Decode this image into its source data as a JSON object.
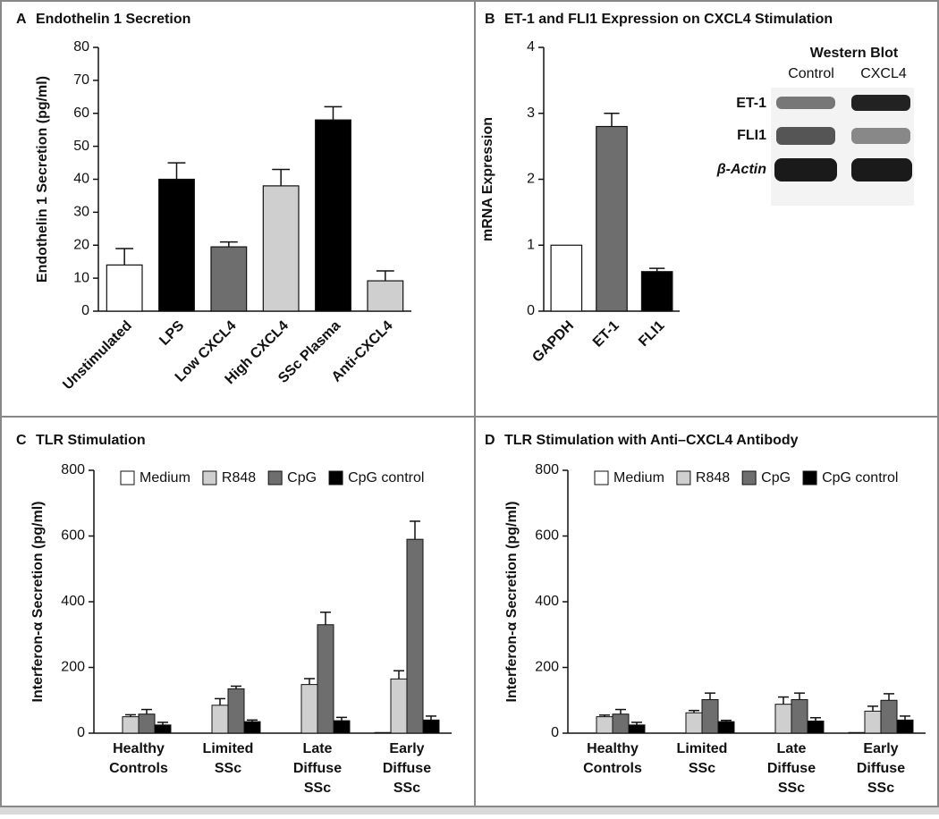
{
  "chart_data": [
    {
      "type": "bar",
      "letter": "A",
      "title": "Endothelin 1 Secretion",
      "ylabel": "Endothelin 1 Secretion (pg/ml)",
      "categories": [
        "Unstimulated",
        "LPS",
        "Low CXCL4",
        "High CXCL4",
        "SSc Plasma",
        "Anti-CXCL4"
      ],
      "values": [
        14,
        40,
        19.5,
        38,
        58,
        9.2
      ],
      "errors": [
        5,
        5,
        1.5,
        5,
        4,
        3
      ],
      "colors": [
        "#ffffff",
        "#000000",
        "#6e6e6e",
        "#cfcfcf",
        "#000000",
        "#cfcfcf"
      ],
      "ylim": [
        0,
        80
      ],
      "yticks": [
        0,
        10,
        20,
        30,
        40,
        50,
        60,
        70,
        80
      ]
    },
    {
      "type": "bar",
      "letter": "B",
      "title": "ET-1 and FLI1 Expression on CXCL4 Stimulation",
      "ylabel": "mRNA Expression",
      "categories": [
        "GAPDH",
        "ET-1",
        "FLI1"
      ],
      "values": [
        1,
        2.8,
        0.6
      ],
      "errors": [
        null,
        0.2,
        0.05
      ],
      "colors": [
        "#ffffff",
        "#6e6e6e",
        "#000000"
      ],
      "ylim": [
        0,
        4
      ],
      "yticks": [
        0,
        1,
        2,
        3,
        4
      ],
      "blot": {
        "title": "Western Blot",
        "columns": [
          "Control",
          "CXCL4"
        ],
        "rows": [
          "ET-1",
          "FLI1",
          "β-Actin"
        ]
      }
    },
    {
      "type": "grouped-bar",
      "letter": "C",
      "title": "TLR Stimulation",
      "ylabel": "Interferon-α Secretion (pg/ml)",
      "categories": [
        [
          "Healthy",
          "Controls"
        ],
        [
          "Limited",
          "SSc"
        ],
        [
          "Late",
          "Diffuse",
          "SSc"
        ],
        [
          "Early",
          "Diffuse",
          "SSc"
        ]
      ],
      "series": [
        {
          "name": "Medium",
          "color": "#ffffff",
          "values": [
            0,
            0,
            0,
            2
          ]
        },
        {
          "name": "R848",
          "color": "#cfcfcf",
          "values": [
            50,
            85,
            148,
            165
          ],
          "errors": [
            6,
            20,
            18,
            25
          ]
        },
        {
          "name": "CpG",
          "color": "#6e6e6e",
          "values": [
            58,
            135,
            330,
            590
          ],
          "errors": [
            14,
            8,
            38,
            55
          ]
        },
        {
          "name": "CpG control",
          "color": "#000000",
          "values": [
            25,
            35,
            38,
            40
          ],
          "errors": [
            8,
            5,
            10,
            12
          ]
        }
      ],
      "ylim": [
        0,
        800
      ],
      "yticks": [
        0,
        200,
        400,
        600,
        800
      ]
    },
    {
      "type": "grouped-bar",
      "letter": "D",
      "title": "TLR Stimulation with Anti–CXCL4 Antibody",
      "ylabel": "Interferon-α Secretion (pg/ml)",
      "categories": [
        [
          "Healthy",
          "Controls"
        ],
        [
          "Limited",
          "SSc"
        ],
        [
          "Late",
          "Diffuse",
          "SSc"
        ],
        [
          "Early",
          "Diffuse",
          "SSc"
        ]
      ],
      "series": [
        {
          "name": "Medium",
          "color": "#ffffff",
          "values": [
            0,
            0,
            0,
            2
          ]
        },
        {
          "name": "R848",
          "color": "#cfcfcf",
          "values": [
            50,
            62,
            88,
            67
          ],
          "errors": [
            5,
            7,
            22,
            15
          ]
        },
        {
          "name": "CpG",
          "color": "#6e6e6e",
          "values": [
            58,
            102,
            102,
            100
          ],
          "errors": [
            14,
            20,
            20,
            20
          ]
        },
        {
          "name": "CpG control",
          "color": "#000000",
          "values": [
            25,
            35,
            37,
            40
          ],
          "errors": [
            8,
            4,
            10,
            12
          ]
        }
      ],
      "ylim": [
        0,
        800
      ],
      "yticks": [
        0,
        200,
        400,
        600,
        800
      ]
    }
  ]
}
